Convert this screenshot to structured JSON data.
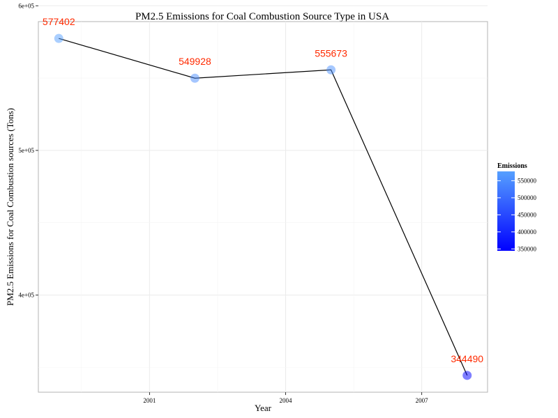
{
  "chart_data": {
    "type": "line",
    "title": "PM2.5 Emissions for Coal Combustion Source Type in USA",
    "xlabel": "Year",
    "ylabel": "PM2.5 Emissions for Coal Combustion sources (Tons)",
    "x": [
      1999,
      2002,
      2005,
      2008
    ],
    "values": [
      577402,
      549928,
      555673,
      344490
    ],
    "data_labels": [
      "577402",
      "549928",
      "555673",
      "344490"
    ],
    "xlim": [
      1999,
      2008
    ],
    "ylim": [
      344490,
      577402
    ],
    "x_ticks": [
      {
        "value": 2001,
        "label": "2001"
      },
      {
        "value": 2004,
        "label": "2004"
      },
      {
        "value": 2007,
        "label": "2007"
      }
    ],
    "y_ticks": [
      {
        "value": 400000,
        "label": "4e+05"
      },
      {
        "value": 500000,
        "label": "5e+05"
      },
      {
        "value": 600000,
        "label": "6e+05"
      }
    ],
    "grid": true,
    "legend": {
      "title": "Emissions",
      "position": "right",
      "color_low": "#0000ff",
      "color_high": "#56a0ff",
      "range": [
        344490,
        577402
      ],
      "ticks": [
        {
          "value": 350000,
          "label": "350000"
        },
        {
          "value": 400000,
          "label": "400000"
        },
        {
          "value": 450000,
          "label": "450000"
        },
        {
          "value": 500000,
          "label": "500000"
        },
        {
          "value": 550000,
          "label": "550000"
        }
      ]
    },
    "colors": {
      "line": "#000000",
      "label": "#ff2a00",
      "grid": "#ebebeb",
      "point_alpha": 0.5
    }
  }
}
